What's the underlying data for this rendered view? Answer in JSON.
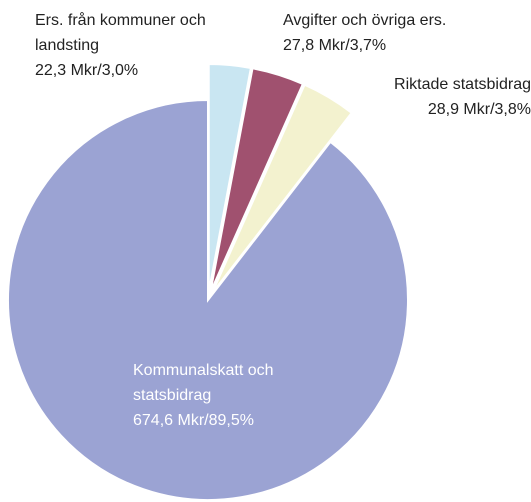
{
  "chart_data": {
    "type": "pie",
    "categories": [
      "Ers. från kommuner och landsting",
      "Avgifter och övriga ers.",
      "Riktade statsbidrag",
      "Kommunalskatt och statsbidrag"
    ],
    "values": [
      22.3,
      27.8,
      28.9,
      674.6
    ],
    "value_labels": [
      "22,3 Mkr/3,0%",
      "27,8 Mkr/3,7%",
      "28,9 Mkr/3,8%",
      "674,6 Mkr/89,5%"
    ],
    "colors": [
      "#c9e6f2",
      "#a0516f",
      "#f3f2cf",
      "#9ba3d3"
    ]
  }
}
